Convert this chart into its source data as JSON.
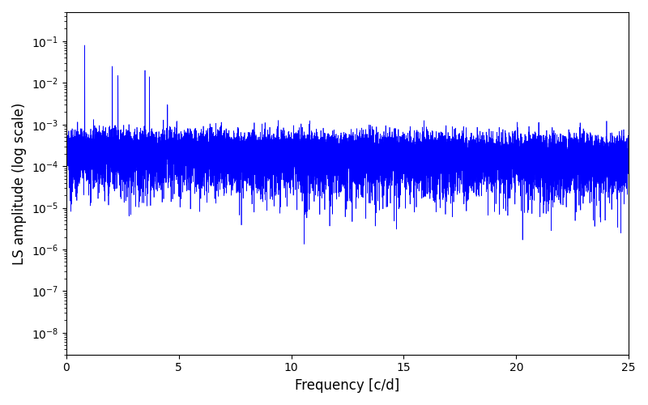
{
  "title": "",
  "xlabel": "Frequency [c/d]",
  "ylabel": "LS amplitude (log scale)",
  "xlim": [
    0,
    25
  ],
  "ylim": [
    3e-09,
    0.5
  ],
  "line_color": "#0000ff",
  "line_width": 0.5,
  "background_color": "#ffffff",
  "freq_min": 0.0,
  "freq_max": 25.0,
  "n_points": 15000,
  "seed": 7,
  "figsize": [
    8.0,
    5.0
  ],
  "dpi": 100,
  "xticks": [
    0,
    5,
    10,
    15,
    20,
    25
  ]
}
